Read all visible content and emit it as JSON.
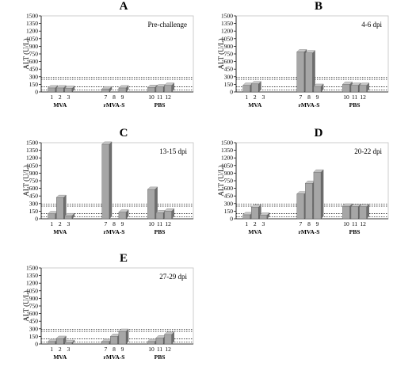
{
  "chart_data": [
    {
      "type": "bar",
      "panel_label": "A",
      "annotation": "Pre-challenge",
      "ylabel": "ALT (U/L)",
      "ylim": [
        0,
        1500
      ],
      "yticks": [
        0,
        150,
        300,
        450,
        600,
        750,
        900,
        1050,
        1200,
        1350,
        1500
      ],
      "reference_lines": [
        40,
        100,
        250,
        290
      ],
      "categories": [
        "1",
        "2",
        "3",
        "7",
        "8",
        "9",
        "10",
        "11",
        "12"
      ],
      "groups": [
        {
          "name": "MVA",
          "categories": [
            "1",
            "2",
            "3"
          ],
          "values": [
            80,
            80,
            70
          ]
        },
        {
          "name": "rMVA-S",
          "categories": [
            "7",
            "8",
            "9"
          ],
          "values": [
            60,
            0,
            80
          ]
        },
        {
          "name": "PBS",
          "categories": [
            "10",
            "11",
            "12"
          ],
          "values": [
            90,
            100,
            130
          ]
        }
      ]
    },
    {
      "type": "bar",
      "panel_label": "B",
      "annotation": "4-6 dpi",
      "ylabel": "ALT (U/L)",
      "ylim": [
        0,
        1500
      ],
      "yticks": [
        0,
        150,
        300,
        450,
        600,
        750,
        900,
        1050,
        1200,
        1350,
        1500
      ],
      "reference_lines": [
        40,
        100,
        250,
        290
      ],
      "categories": [
        "1",
        "2",
        "3",
        "7",
        "8",
        "9",
        "10",
        "11",
        "12"
      ],
      "groups": [
        {
          "name": "MVA",
          "categories": [
            "1",
            "2",
            "3"
          ],
          "values": [
            130,
            160,
            0
          ]
        },
        {
          "name": "rMVA-S",
          "categories": [
            "7",
            "8",
            "9"
          ],
          "values": [
            790,
            770,
            110
          ]
        },
        {
          "name": "PBS",
          "categories": [
            "10",
            "11",
            "12"
          ],
          "values": [
            150,
            130,
            130
          ]
        }
      ]
    },
    {
      "type": "bar",
      "panel_label": "C",
      "annotation": "13-15 dpi",
      "ylabel": "ALT (U/L)",
      "ylim": [
        0,
        1500
      ],
      "yticks": [
        0,
        150,
        300,
        450,
        600,
        750,
        900,
        1050,
        1200,
        1350,
        1500
      ],
      "reference_lines": [
        40,
        100,
        250,
        290
      ],
      "categories": [
        "1",
        "2",
        "3",
        "7",
        "8",
        "9",
        "10",
        "11",
        "12"
      ],
      "groups": [
        {
          "name": "MVA",
          "categories": [
            "1",
            "2",
            "3"
          ],
          "values": [
            100,
            420,
            60
          ]
        },
        {
          "name": "rMVA-S",
          "categories": [
            "7",
            "8",
            "9"
          ],
          "values": [
            1470,
            0,
            130
          ]
        },
        {
          "name": "PBS",
          "categories": [
            "10",
            "11",
            "12"
          ],
          "values": [
            580,
            120,
            150
          ]
        }
      ]
    },
    {
      "type": "bar",
      "panel_label": "D",
      "annotation": "20-22 dpi",
      "ylabel": "ALT (U/L)",
      "ylim": [
        0,
        1500
      ],
      "yticks": [
        0,
        150,
        300,
        450,
        600,
        750,
        900,
        1050,
        1200,
        1350,
        1500
      ],
      "reference_lines": [
        40,
        100,
        250,
        290
      ],
      "categories": [
        "1",
        "2",
        "3",
        "7",
        "8",
        "9",
        "10",
        "11",
        "12"
      ],
      "groups": [
        {
          "name": "MVA",
          "categories": [
            "1",
            "2",
            "3"
          ],
          "values": [
            80,
            230,
            70
          ]
        },
        {
          "name": "rMVA-S",
          "categories": [
            "7",
            "8",
            "9"
          ],
          "values": [
            490,
            700,
            920
          ]
        },
        {
          "name": "PBS",
          "categories": [
            "10",
            "11",
            "12"
          ],
          "values": [
            250,
            240,
            240
          ]
        }
      ]
    },
    {
      "type": "bar",
      "panel_label": "E",
      "annotation": "27-29 dpi",
      "ylabel": "ALT (U/L)",
      "ylim": [
        0,
        1500
      ],
      "yticks": [
        0,
        150,
        300,
        450,
        600,
        750,
        900,
        1050,
        1200,
        1350,
        1500
      ],
      "reference_lines": [
        40,
        100,
        250,
        290
      ],
      "categories": [
        "1",
        "2",
        "3",
        "7",
        "8",
        "9",
        "10",
        "11",
        "12"
      ],
      "groups": [
        {
          "name": "MVA",
          "categories": [
            "1",
            "2",
            "3"
          ],
          "values": [
            50,
            110,
            30
          ]
        },
        {
          "name": "rMVA-S",
          "categories": [
            "7",
            "8",
            "9"
          ],
          "values": [
            50,
            150,
            250
          ]
        },
        {
          "name": "PBS",
          "categories": [
            "10",
            "11",
            "12"
          ],
          "values": [
            50,
            120,
            190
          ]
        }
      ]
    }
  ],
  "colors": {
    "bar_face": "#a6a6a6",
    "bar_side": "#6e6e6e",
    "bar_top": "#c8c8c8",
    "axis": "#000000",
    "frame": "#c0c0c0"
  }
}
